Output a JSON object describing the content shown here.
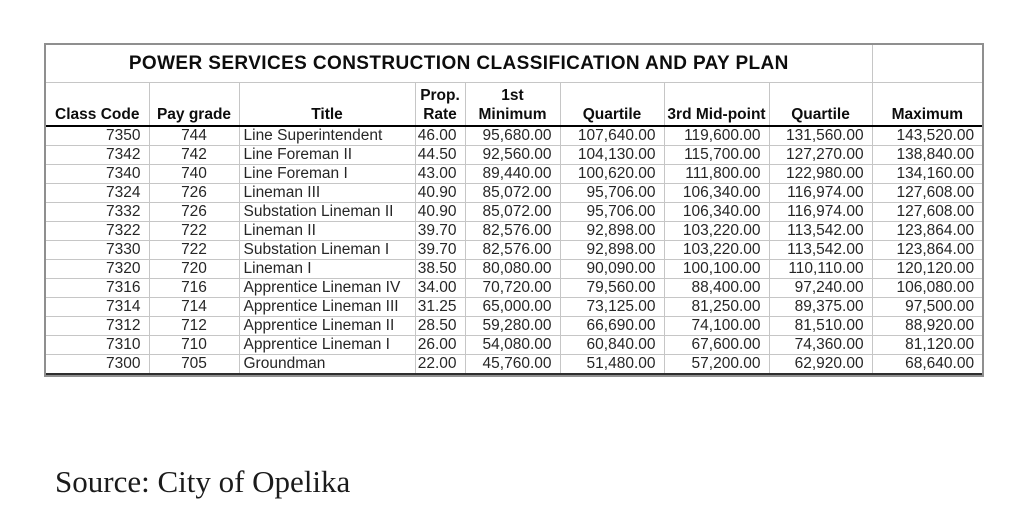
{
  "table": {
    "title": "POWER SERVICES CONSTRUCTION CLASSIFICATION AND PAY PLAN",
    "columns": [
      {
        "id": "class-code",
        "label_top": "",
        "label": "Class Code"
      },
      {
        "id": "pay-grade",
        "label_top": "",
        "label": "Pay grade"
      },
      {
        "id": "title",
        "label_top": "",
        "label": "Title"
      },
      {
        "id": "prop-rate",
        "label_top": "Prop.",
        "label": "Rate"
      },
      {
        "id": "minimum",
        "label_top": "1st",
        "label": "Minimum"
      },
      {
        "id": "quartile-1st",
        "label_top": "",
        "label": "Quartile"
      },
      {
        "id": "mid-point",
        "label_top": "",
        "label": "3rd Mid-point"
      },
      {
        "id": "quartile-3rd",
        "label_top": "",
        "label": "Quartile"
      },
      {
        "id": "maximum",
        "label_top": "",
        "label": "Maximum"
      }
    ],
    "rows": [
      [
        "7350",
        "744",
        "Line Superintendent",
        "46.00",
        "95,680.00",
        "107,640.00",
        "119,600.00",
        "131,560.00",
        "143,520.00"
      ],
      [
        "7342",
        "742",
        "Line Foreman II",
        "44.50",
        "92,560.00",
        "104,130.00",
        "115,700.00",
        "127,270.00",
        "138,840.00"
      ],
      [
        "7340",
        "740",
        "Line Foreman I",
        "43.00",
        "89,440.00",
        "100,620.00",
        "111,800.00",
        "122,980.00",
        "134,160.00"
      ],
      [
        "7324",
        "726",
        "Lineman III",
        "40.90",
        "85,072.00",
        "95,706.00",
        "106,340.00",
        "116,974.00",
        "127,608.00"
      ],
      [
        "7332",
        "726",
        "Substation Lineman II",
        "40.90",
        "85,072.00",
        "95,706.00",
        "106,340.00",
        "116,974.00",
        "127,608.00"
      ],
      [
        "7322",
        "722",
        "Lineman II",
        "39.70",
        "82,576.00",
        "92,898.00",
        "103,220.00",
        "113,542.00",
        "123,864.00"
      ],
      [
        "7330",
        "722",
        "Substation Lineman I",
        "39.70",
        "82,576.00",
        "92,898.00",
        "103,220.00",
        "113,542.00",
        "123,864.00"
      ],
      [
        "7320",
        "720",
        "Lineman I",
        "38.50",
        "80,080.00",
        "90,090.00",
        "100,100.00",
        "110,110.00",
        "120,120.00"
      ],
      [
        "7316",
        "716",
        "Apprentice Lineman IV",
        "34.00",
        "70,720.00",
        "79,560.00",
        "88,400.00",
        "97,240.00",
        "106,080.00"
      ],
      [
        "7314",
        "714",
        "Apprentice Lineman III",
        "31.25",
        "65,000.00",
        "73,125.00",
        "81,250.00",
        "89,375.00",
        "97,500.00"
      ],
      [
        "7312",
        "712",
        "Apprentice Lineman II",
        "28.50",
        "59,280.00",
        "66,690.00",
        "74,100.00",
        "81,510.00",
        "88,920.00"
      ],
      [
        "7310",
        "710",
        "Apprentice Lineman I",
        "26.00",
        "54,080.00",
        "60,840.00",
        "67,600.00",
        "74,360.00",
        "81,120.00"
      ],
      [
        "7300",
        "705",
        "Groundman",
        "22.00",
        "45,760.00",
        "51,480.00",
        "57,200.00",
        "62,920.00",
        "68,640.00"
      ]
    ]
  },
  "source": {
    "text": "Source: City of Opelika"
  }
}
